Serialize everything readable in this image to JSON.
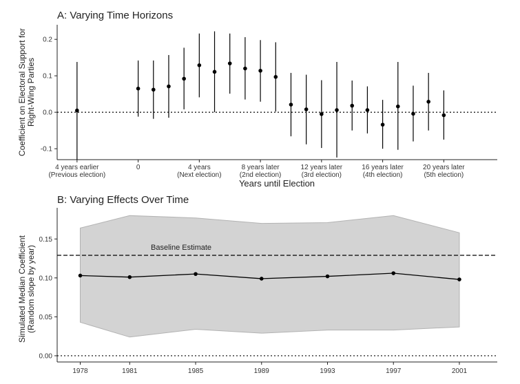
{
  "chart_data": [
    {
      "type": "scatter",
      "title": "A: Varying Time Horizons",
      "xlabel": "Years until Election",
      "ylabel_lines": [
        "Coefficient on Electoral Support for",
        "Right-Wing Parties"
      ],
      "ylim": [
        -0.13,
        0.24
      ],
      "yticks": [
        -0.1,
        0.0,
        0.1,
        0.2
      ],
      "ytick_labels": [
        "-0.1",
        "0.0",
        "0.1",
        "0.2"
      ],
      "xlim": [
        -5.3,
        23.5
      ],
      "xticks": [
        {
          "x": -4,
          "lines": [
            "4 years earlier",
            "(Previous election)"
          ]
        },
        {
          "x": 0,
          "lines": [
            "0",
            ""
          ]
        },
        {
          "x": 4,
          "lines": [
            "4 years",
            "(Next election)"
          ]
        },
        {
          "x": 8,
          "lines": [
            "8 years later",
            "(2nd election)"
          ]
        },
        {
          "x": 12,
          "lines": [
            "12 years later",
            "(3rd election)"
          ]
        },
        {
          "x": 16,
          "lines": [
            "16 years later",
            "(4th election)"
          ]
        },
        {
          "x": 20,
          "lines": [
            "20 years later",
            "(5th election)"
          ]
        }
      ],
      "reference_line": 0,
      "points": [
        {
          "x": -4,
          "y": 0.005,
          "lo": -0.13,
          "hi": 0.138
        },
        {
          "x": 0,
          "y": 0.065,
          "lo": -0.012,
          "hi": 0.142
        },
        {
          "x": 1,
          "y": 0.062,
          "lo": -0.018,
          "hi": 0.142
        },
        {
          "x": 2,
          "y": 0.071,
          "lo": -0.015,
          "hi": 0.157
        },
        {
          "x": 3,
          "y": 0.092,
          "lo": 0.008,
          "hi": 0.177
        },
        {
          "x": 4,
          "y": 0.129,
          "lo": 0.041,
          "hi": 0.216
        },
        {
          "x": 5,
          "y": 0.111,
          "lo": 0.0,
          "hi": 0.222
        },
        {
          "x": 6,
          "y": 0.134,
          "lo": 0.051,
          "hi": 0.216
        },
        {
          "x": 7,
          "y": 0.12,
          "lo": 0.035,
          "hi": 0.206
        },
        {
          "x": 8,
          "y": 0.114,
          "lo": 0.029,
          "hi": 0.198
        },
        {
          "x": 9,
          "y": 0.097,
          "lo": 0.002,
          "hi": 0.192
        },
        {
          "x": 10,
          "y": 0.021,
          "lo": -0.066,
          "hi": 0.108
        },
        {
          "x": 11,
          "y": 0.008,
          "lo": -0.088,
          "hi": 0.103
        },
        {
          "x": 12,
          "y": -0.005,
          "lo": -0.098,
          "hi": 0.088
        },
        {
          "x": 13,
          "y": 0.006,
          "lo": -0.124,
          "hi": 0.138
        },
        {
          "x": 14,
          "y": 0.018,
          "lo": -0.05,
          "hi": 0.087
        },
        {
          "x": 15,
          "y": 0.006,
          "lo": -0.058,
          "hi": 0.071
        },
        {
          "x": 16,
          "y": -0.034,
          "lo": -0.1,
          "hi": 0.034
        },
        {
          "x": 17,
          "y": 0.016,
          "lo": -0.103,
          "hi": 0.138
        },
        {
          "x": 18,
          "y": -0.004,
          "lo": -0.08,
          "hi": 0.073
        },
        {
          "x": 19,
          "y": 0.029,
          "lo": -0.05,
          "hi": 0.108
        },
        {
          "x": 20,
          "y": -0.008,
          "lo": -0.075,
          "hi": 0.06
        }
      ]
    },
    {
      "type": "line",
      "title": "B: Varying Effects Over Time",
      "xlabel": "",
      "ylabel_lines": [
        "Simulated Median Coefficient",
        "(Random slope by year)"
      ],
      "ylim": [
        -0.008,
        0.19
      ],
      "yticks": [
        0.0,
        0.05,
        0.1,
        0.15
      ],
      "ytick_labels": [
        "0.00",
        "0.05",
        "0.10",
        "0.15"
      ],
      "x": [
        1978,
        1981,
        1985,
        1989,
        1993,
        1997,
        2001
      ],
      "x_labels": [
        "1978",
        "1981",
        "1985",
        "1989",
        "1993",
        "1997",
        "2001"
      ],
      "xlim": [
        1976.6,
        2003.3
      ],
      "values": [
        0.103,
        0.101,
        0.105,
        0.099,
        0.102,
        0.106,
        0.098
      ],
      "band_lower": [
        0.043,
        0.024,
        0.034,
        0.029,
        0.033,
        0.033,
        0.037
      ],
      "band_upper": [
        0.164,
        0.18,
        0.177,
        0.17,
        0.171,
        0.18,
        0.158
      ],
      "baseline": {
        "value": 0.129,
        "label": "Baseline Estimate"
      },
      "reference_line": 0,
      "colors": {
        "band": "#d3d3d3",
        "band_edge": "#b2b2b2",
        "line": "#000000"
      }
    }
  ]
}
